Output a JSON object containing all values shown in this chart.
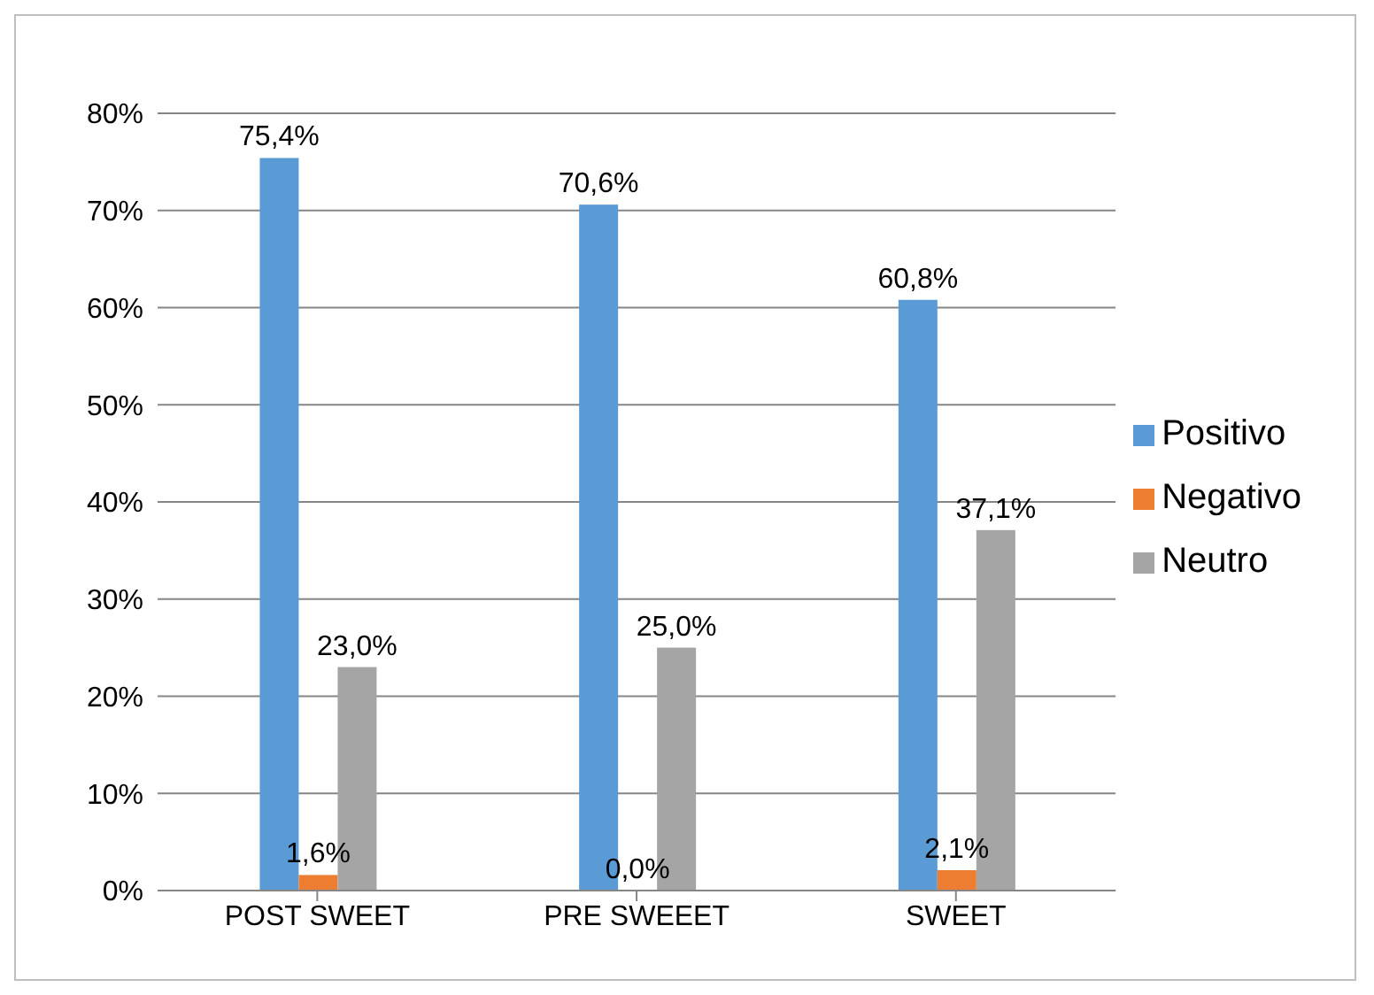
{
  "chart_data": {
    "type": "bar",
    "categories": [
      "POST SWEET",
      "PRE SWEEET",
      "SWEET"
    ],
    "series": [
      {
        "name": "Positivo",
        "color": "#5b9bd5",
        "values": [
          75.4,
          70.6,
          60.8
        ],
        "value_labels": [
          "75,4%",
          "70,6%",
          "60,8%"
        ]
      },
      {
        "name": "Negativo",
        "color": "#ed7d31",
        "values": [
          1.6,
          0.0,
          2.1
        ],
        "value_labels": [
          "1,6%",
          "0,0%",
          "2,1%"
        ]
      },
      {
        "name": "Neutro",
        "color": "#a5a5a5",
        "values": [
          23.0,
          25.0,
          37.1
        ],
        "value_labels": [
          "23,0%",
          "25,0%",
          "37,1%"
        ]
      }
    ],
    "ylim": [
      0,
      80
    ],
    "yticks": [
      {
        "value": 0,
        "label": "0%"
      },
      {
        "value": 10,
        "label": "10%"
      },
      {
        "value": 20,
        "label": "20%"
      },
      {
        "value": 30,
        "label": "30%"
      },
      {
        "value": 40,
        "label": "40%"
      },
      {
        "value": 50,
        "label": "50%"
      },
      {
        "value": 60,
        "label": "60%"
      },
      {
        "value": 70,
        "label": "70%"
      },
      {
        "value": 80,
        "label": "80%"
      }
    ],
    "grid": "y",
    "legend": "right"
  }
}
